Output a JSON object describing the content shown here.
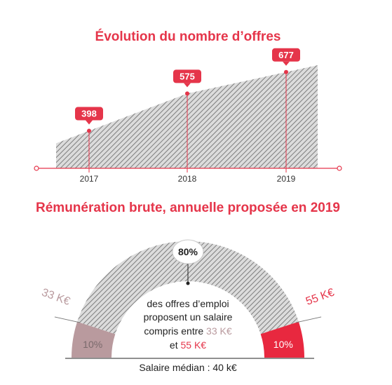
{
  "colors": {
    "accent": "#e5354a",
    "hatch": "#8a8a8a",
    "low_segment": "#b99a9e",
    "high_segment": "#e8283f",
    "text": "#222222"
  },
  "chart_data": [
    {
      "type": "area",
      "title": "Évolution du nombre d’offres",
      "categories": [
        "2017",
        "2018",
        "2019"
      ],
      "values": [
        398,
        575,
        677
      ],
      "data_labels": [
        "398",
        "575",
        "677"
      ],
      "xlabel": "",
      "ylabel": "",
      "grid": false
    },
    {
      "type": "pie",
      "title": "Rémunération brute, annuelle proposée en 2019",
      "categories": [
        "< 33 K€",
        "33 K€ – 55 K€",
        "> 55 K€"
      ],
      "values": [
        10,
        80,
        10
      ],
      "segment_labels": [
        "10%",
        "80%",
        "10%"
      ],
      "boundary_labels": [
        "33 K€",
        "55 K€"
      ],
      "center_text": {
        "line1": "des offres d’emploi",
        "line2": "proposent un salaire",
        "line3_prefix": "compris entre ",
        "low": "33 K€",
        "line4_prefix": "et ",
        "high": "55 K€"
      },
      "footer": "Salaire médian : 40 k€"
    }
  ]
}
